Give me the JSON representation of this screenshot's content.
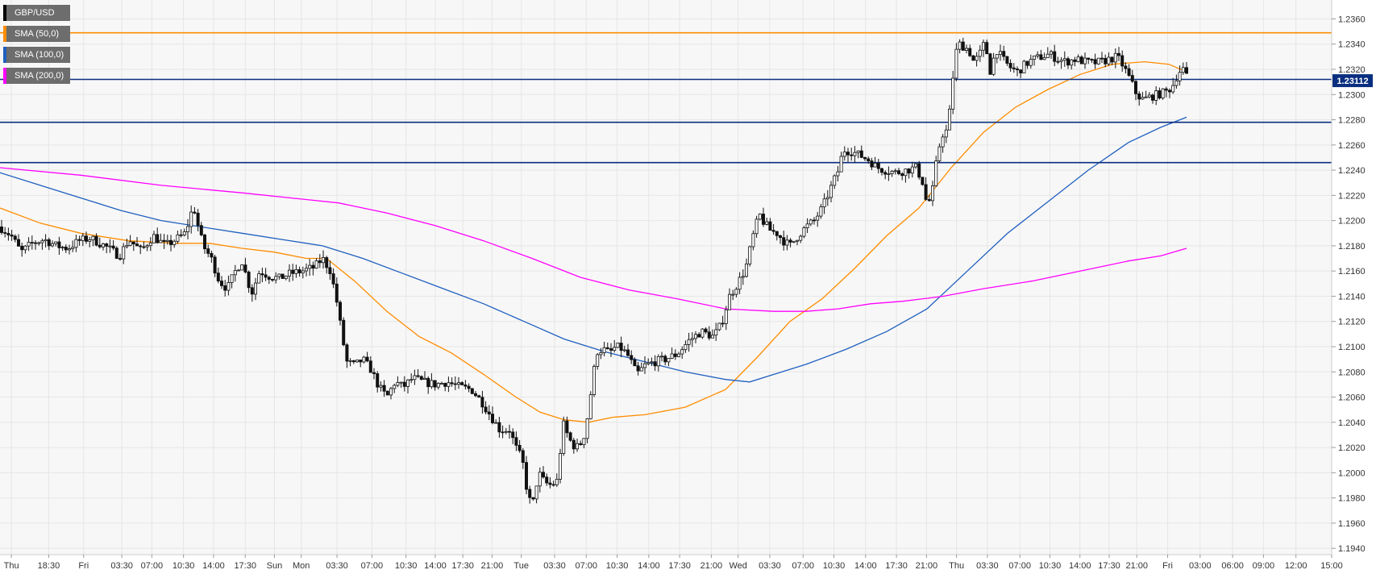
{
  "chart_data": {
    "type": "candlestick",
    "instrument": "GBP/USD",
    "y_range": [
      1.1935,
      1.2375
    ],
    "y_ticks": [
      "1.2360",
      "1.2340",
      "1.2320",
      "1.2300",
      "1.2280",
      "1.2260",
      "1.2240",
      "1.2220",
      "1.2200",
      "1.2180",
      "1.2160",
      "1.2140",
      "1.2120",
      "1.2100",
      "1.2080",
      "1.2060",
      "1.2040",
      "1.2020",
      "1.2000",
      "1.1980",
      "1.1960",
      "1.1940"
    ],
    "x_ticks": [
      "Thu",
      "18:30",
      "Fri",
      "03:30",
      "07:00",
      "10:30",
      "14:00",
      "17:30",
      "Sun",
      "Mon",
      "03:30",
      "07:00",
      "10:30",
      "14:00",
      "17:30",
      "21:00",
      "Tue",
      "03:30",
      "07:00",
      "10:30",
      "14:00",
      "17:30",
      "21:00",
      "Wed",
      "03:30",
      "07:00",
      "10:30",
      "14:00",
      "17:30",
      "21:00",
      "Thu",
      "03:30",
      "07:00",
      "10:30",
      "14:00",
      "17:30",
      "21:00",
      "Fri",
      "03:00",
      "06:00",
      "09:00",
      "12:00",
      "15:00"
    ],
    "close_path": [
      [
        0,
        1.2195
      ],
      [
        14,
        1.2188
      ],
      [
        26,
        1.2175
      ],
      [
        40,
        1.2182
      ],
      [
        55,
        1.2185
      ],
      [
        70,
        1.218
      ],
      [
        84,
        1.2178
      ],
      [
        98,
        1.2184
      ],
      [
        112,
        1.2186
      ],
      [
        130,
        1.218
      ],
      [
        148,
        1.2172
      ],
      [
        160,
        1.2185
      ],
      [
        175,
        1.2176
      ],
      [
        190,
        1.2188
      ],
      [
        205,
        1.218
      ],
      [
        218,
        1.2185
      ],
      [
        230,
        1.219
      ],
      [
        240,
        1.2212
      ],
      [
        246,
        1.2195
      ],
      [
        252,
        1.218
      ],
      [
        262,
        1.217
      ],
      [
        272,
        1.2152
      ],
      [
        282,
        1.2146
      ],
      [
        292,
        1.216
      ],
      [
        300,
        1.2168
      ],
      [
        312,
        1.2142
      ],
      [
        322,
        1.216
      ],
      [
        334,
        1.2156
      ],
      [
        346,
        1.2154
      ],
      [
        360,
        1.2158
      ],
      [
        375,
        1.216
      ],
      [
        390,
        1.2163
      ],
      [
        400,
        1.217
      ],
      [
        410,
        1.216
      ],
      [
        418,
        1.2135
      ],
      [
        424,
        1.211
      ],
      [
        430,
        1.2088
      ],
      [
        440,
        1.2085
      ],
      [
        450,
        1.209
      ],
      [
        460,
        1.2082
      ],
      [
        470,
        1.2068
      ],
      [
        480,
        1.206
      ],
      [
        490,
        1.2072
      ],
      [
        500,
        1.2068
      ],
      [
        512,
        1.2075
      ],
      [
        525,
        1.2072
      ],
      [
        540,
        1.207
      ],
      [
        555,
        1.2072
      ],
      [
        570,
        1.2068
      ],
      [
        585,
        1.2066
      ],
      [
        598,
        1.2056
      ],
      [
        610,
        1.2044
      ],
      [
        620,
        1.2034
      ],
      [
        632,
        1.2034
      ],
      [
        640,
        1.202
      ],
      [
        648,
        1.201
      ],
      [
        654,
        1.1985
      ],
      [
        660,
        1.1972
      ],
      [
        668,
        1.2
      ],
      [
        676,
        1.1992
      ],
      [
        684,
        1.199
      ],
      [
        692,
        1.1994
      ],
      [
        698,
        1.204
      ],
      [
        704,
        1.203
      ],
      [
        710,
        1.2022
      ],
      [
        718,
        1.202
      ],
      [
        726,
        1.2032
      ],
      [
        734,
        1.2068
      ],
      [
        740,
        1.2096
      ],
      [
        748,
        1.2098
      ],
      [
        756,
        1.2095
      ],
      [
        764,
        1.21
      ],
      [
        772,
        1.2098
      ],
      [
        780,
        1.2092
      ],
      [
        790,
        1.2078
      ],
      [
        800,
        1.2085
      ],
      [
        812,
        1.2088
      ],
      [
        825,
        1.209
      ],
      [
        840,
        1.2094
      ],
      [
        855,
        1.2105
      ],
      [
        870,
        1.2112
      ],
      [
        885,
        1.2108
      ],
      [
        895,
        1.2118
      ],
      [
        905,
        1.214
      ],
      [
        915,
        1.215
      ],
      [
        925,
        1.2162
      ],
      [
        935,
        1.219
      ],
      [
        942,
        1.2205
      ],
      [
        948,
        1.2198
      ],
      [
        956,
        1.2192
      ],
      [
        964,
        1.219
      ],
      [
        972,
        1.2184
      ],
      [
        980,
        1.218
      ],
      [
        990,
        1.2188
      ],
      [
        1000,
        1.2195
      ],
      [
        1010,
        1.22
      ],
      [
        1020,
        1.221
      ],
      [
        1030,
        1.2225
      ],
      [
        1040,
        1.224
      ],
      [
        1046,
        1.2256
      ],
      [
        1056,
        1.2255
      ],
      [
        1066,
        1.2252
      ],
      [
        1078,
        1.2248
      ],
      [
        1088,
        1.2242
      ],
      [
        1098,
        1.224
      ],
      [
        1112,
        1.2238
      ],
      [
        1124,
        1.224
      ],
      [
        1136,
        1.2242
      ],
      [
        1144,
        1.2232
      ],
      [
        1150,
        1.2212
      ],
      [
        1156,
        1.222
      ],
      [
        1162,
        1.2248
      ],
      [
        1168,
        1.2268
      ],
      [
        1176,
        1.2272
      ],
      [
        1180,
        1.23
      ],
      [
        1185,
        1.2332
      ],
      [
        1190,
        1.234
      ],
      [
        1196,
        1.2338
      ],
      [
        1202,
        1.2335
      ],
      [
        1208,
        1.2326
      ],
      [
        1214,
        1.233
      ],
      [
        1222,
        1.2342
      ],
      [
        1228,
        1.2318
      ],
      [
        1236,
        1.2336
      ],
      [
        1244,
        1.2328
      ],
      [
        1252,
        1.2322
      ],
      [
        1262,
        1.2318
      ],
      [
        1272,
        1.2324
      ],
      [
        1282,
        1.2328
      ],
      [
        1292,
        1.233
      ],
      [
        1302,
        1.2332
      ],
      [
        1312,
        1.2328
      ],
      [
        1322,
        1.2326
      ],
      [
        1334,
        1.2328
      ],
      [
        1346,
        1.2326
      ],
      [
        1356,
        1.2325
      ],
      [
        1366,
        1.2326
      ],
      [
        1376,
        1.2328
      ],
      [
        1386,
        1.233
      ],
      [
        1394,
        1.2322
      ],
      [
        1402,
        1.2312
      ],
      [
        1410,
        1.23
      ],
      [
        1418,
        1.2296
      ],
      [
        1426,
        1.2298
      ],
      [
        1436,
        1.23
      ],
      [
        1446,
        1.2302
      ],
      [
        1454,
        1.2306
      ],
      [
        1462,
        1.2318
      ],
      [
        1468,
        1.232
      ],
      [
        1474,
        1.2311
      ]
    ],
    "sma50": [
      [
        0,
        1.221
      ],
      [
        50,
        1.2198
      ],
      [
        100,
        1.219
      ],
      [
        160,
        1.2184
      ],
      [
        220,
        1.2182
      ],
      [
        260,
        1.2182
      ],
      [
        300,
        1.2178
      ],
      [
        340,
        1.2175
      ],
      [
        380,
        1.217
      ],
      [
        405,
        1.217
      ],
      [
        440,
        1.2152
      ],
      [
        480,
        1.2128
      ],
      [
        520,
        1.2108
      ],
      [
        560,
        1.2095
      ],
      [
        600,
        1.2078
      ],
      [
        640,
        1.206
      ],
      [
        670,
        1.2048
      ],
      [
        700,
        1.2042
      ],
      [
        730,
        1.204
      ],
      [
        760,
        1.2044
      ],
      [
        800,
        1.2046
      ],
      [
        850,
        1.2052
      ],
      [
        900,
        1.2066
      ],
      [
        940,
        1.2092
      ],
      [
        980,
        1.212
      ],
      [
        1020,
        1.2138
      ],
      [
        1060,
        1.2162
      ],
      [
        1100,
        1.2188
      ],
      [
        1140,
        1.221
      ],
      [
        1180,
        1.2242
      ],
      [
        1220,
        1.227
      ],
      [
        1260,
        1.229
      ],
      [
        1300,
        1.2304
      ],
      [
        1340,
        1.2316
      ],
      [
        1380,
        1.2324
      ],
      [
        1420,
        1.2326
      ],
      [
        1450,
        1.2324
      ],
      [
        1472,
        1.2318
      ]
    ],
    "sma100": [
      [
        0,
        1.2238
      ],
      [
        50,
        1.2228
      ],
      [
        100,
        1.2218
      ],
      [
        150,
        1.2208
      ],
      [
        200,
        1.22
      ],
      [
        250,
        1.2195
      ],
      [
        300,
        1.219
      ],
      [
        350,
        1.2185
      ],
      [
        400,
        1.218
      ],
      [
        450,
        1.217
      ],
      [
        500,
        1.2158
      ],
      [
        550,
        1.2146
      ],
      [
        600,
        1.2134
      ],
      [
        650,
        1.212
      ],
      [
        700,
        1.2106
      ],
      [
        750,
        1.2096
      ],
      [
        800,
        1.2088
      ],
      [
        850,
        1.208
      ],
      [
        900,
        1.2074
      ],
      [
        930,
        1.2072
      ],
      [
        960,
        1.2078
      ],
      [
        1000,
        1.2086
      ],
      [
        1050,
        1.2098
      ],
      [
        1100,
        1.2112
      ],
      [
        1150,
        1.213
      ],
      [
        1200,
        1.216
      ],
      [
        1250,
        1.219
      ],
      [
        1300,
        1.2215
      ],
      [
        1350,
        1.224
      ],
      [
        1400,
        1.2262
      ],
      [
        1440,
        1.2274
      ],
      [
        1472,
        1.2282
      ]
    ],
    "sma200": [
      [
        0,
        1.2242
      ],
      [
        100,
        1.2236
      ],
      [
        200,
        1.2228
      ],
      [
        300,
        1.2222
      ],
      [
        420,
        1.2214
      ],
      [
        480,
        1.2206
      ],
      [
        540,
        1.2196
      ],
      [
        600,
        1.2184
      ],
      [
        660,
        1.217
      ],
      [
        720,
        1.2155
      ],
      [
        780,
        1.2145
      ],
      [
        840,
        1.2138
      ],
      [
        900,
        1.213
      ],
      [
        960,
        1.2128
      ],
      [
        1000,
        1.2128
      ],
      [
        1040,
        1.213
      ],
      [
        1080,
        1.2134
      ],
      [
        1120,
        1.2136
      ],
      [
        1170,
        1.214
      ],
      [
        1220,
        1.2146
      ],
      [
        1280,
        1.2152
      ],
      [
        1340,
        1.216
      ],
      [
        1400,
        1.2168
      ],
      [
        1440,
        1.2172
      ],
      [
        1472,
        1.2178
      ]
    ],
    "series": [
      {
        "name": "SMA (50,0)",
        "color": "#ff8c00"
      },
      {
        "name": "SMA (100,0)",
        "color": "#1f5fbf"
      },
      {
        "name": "SMA (200,0)",
        "color": "#ff00ff"
      }
    ],
    "horizontal_levels": [
      {
        "value": 1.2349,
        "color": "#ff8c00"
      },
      {
        "value": 1.2312,
        "color": "#0a2f80"
      },
      {
        "value": 1.2278,
        "color": "#0a2f80"
      },
      {
        "value": 1.2246,
        "color": "#0a2f80"
      }
    ],
    "price_label": "1.23112",
    "price_value": 1.2311,
    "grid": true,
    "legend_position": "top-left"
  },
  "legend": {
    "instrument_label": "GBP/USD",
    "sma50_label": "SMA (50,0)",
    "sma100_label": "SMA (100,0)",
    "sma200_label": "SMA (200,0)",
    "colors": {
      "instrument": "#000000",
      "sma50": "#ff8c00",
      "sma100": "#1f5fbf",
      "sma200": "#ff00ff"
    }
  }
}
